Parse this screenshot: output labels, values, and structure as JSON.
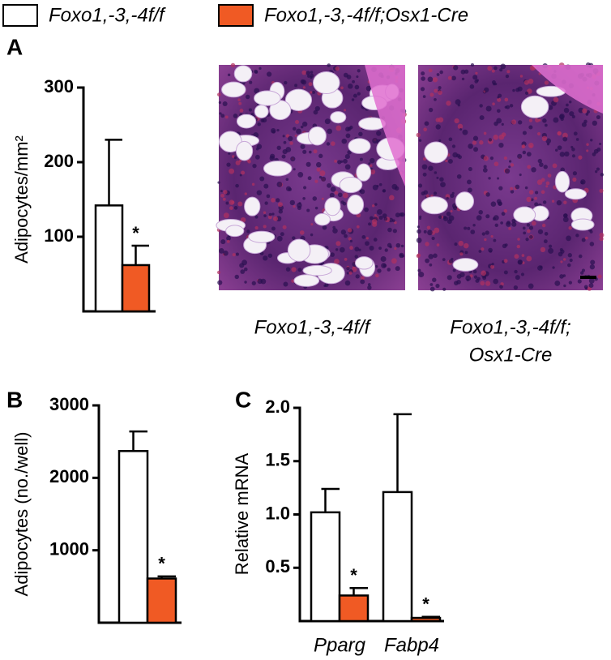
{
  "chart_data": [
    {
      "type": "bar",
      "panel": "A",
      "ylabel": "Adipocytes/mm²",
      "ylim": [
        0,
        300
      ],
      "yticks": [
        100,
        200,
        300
      ],
      "categories": [
        null
      ],
      "series": [
        {
          "name": "Foxo1,-3,-4f/f",
          "color": "#ffffff",
          "values": [
            142
          ],
          "errors": [
            88
          ]
        },
        {
          "name": "Foxo1,-3,-4f/f;Osx1-Cre",
          "color": "#f05a24",
          "values": [
            62
          ],
          "errors": [
            26
          ],
          "annotations": [
            "*"
          ]
        }
      ]
    },
    {
      "type": "bar",
      "panel": "B",
      "ylabel": "Adipocytes (no./well)",
      "ylim": [
        0,
        3000
      ],
      "yticks": [
        1000,
        2000,
        3000
      ],
      "categories": [
        null
      ],
      "series": [
        {
          "color": "#ffffff",
          "values": [
            2370
          ],
          "errors": [
            270
          ]
        },
        {
          "color": "#f05a24",
          "values": [
            610
          ],
          "errors": [
            30
          ],
          "annotations": [
            "*"
          ]
        }
      ]
    },
    {
      "type": "bar",
      "panel": "C",
      "ylabel": "Relative mRNA",
      "ylim": [
        0,
        2
      ],
      "yticks": [
        0.5,
        {
          "value": 1,
          "label": "1.0"
        },
        1.5,
        {
          "value": 2,
          "label": "2.0"
        }
      ],
      "categories": [
        "Pparg",
        "Fabp4"
      ],
      "series": [
        {
          "color": "#ffffff",
          "values": [
            1.02,
            1.21
          ],
          "errors": [
            0.22,
            0.73
          ]
        },
        {
          "color": "#f05a24",
          "values": [
            0.24,
            0.03
          ],
          "errors": [
            0.07,
            0.01
          ],
          "annotations": [
            "*",
            "*"
          ]
        }
      ]
    }
  ],
  "images": [
    {
      "caption": [
        "Foxo1,-3,-4f/f"
      ]
    },
    {
      "caption": [
        "Foxo1,-3,-4f/f;",
        "Osx1-Cre"
      ]
    }
  ]
}
